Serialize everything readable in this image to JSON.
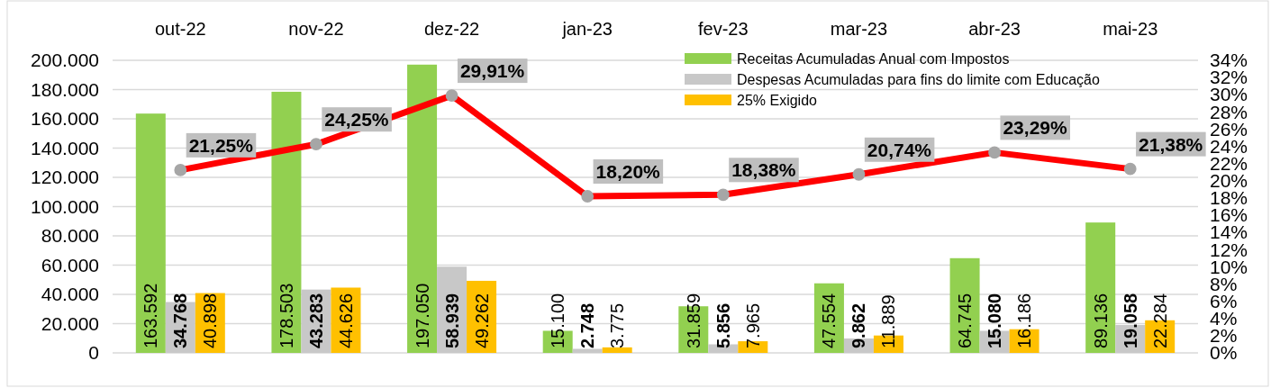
{
  "chart_data": {
    "type": "bar",
    "categories": [
      "out-22",
      "nov-22",
      "dez-22",
      "jan-23",
      "fev-23",
      "mar-23",
      "abr-23",
      "mai-23"
    ],
    "series": [
      {
        "name": "Receitas Acumuladas Anual com Impostos",
        "color": "#92d050",
        "values": [
          163592,
          178503,
          197050,
          15100,
          31859,
          47554,
          64745,
          89136
        ],
        "value_labels": [
          "163.592",
          "178.503",
          "197.050",
          "15.100",
          "31.859",
          "47.554",
          "64.745",
          "89.136"
        ]
      },
      {
        "name": "Despesas Acumuladas para fins do limite com Educação",
        "color": "#c8c8c8",
        "values": [
          34768,
          43283,
          58939,
          2748,
          5856,
          9862,
          15080,
          19058
        ],
        "value_labels": [
          "34.768",
          "43.283",
          "58.939",
          "2.748",
          "5.856",
          "9.862",
          "15.080",
          "19.058"
        ]
      },
      {
        "name": "25% Exigido",
        "color": "#ffc000",
        "values": [
          40898,
          44626,
          49262,
          3775,
          7965,
          11889,
          16186,
          22284
        ],
        "value_labels": [
          "40.898",
          "44.626",
          "49.262",
          "3.775",
          "7.965",
          "11.889",
          "16.186",
          "22.284"
        ]
      },
      {
        "type": "line",
        "axis": "y2",
        "color": "#ff0000",
        "values": [
          21.25,
          24.25,
          29.91,
          18.2,
          18.38,
          20.74,
          23.29,
          21.38
        ],
        "value_labels": [
          "21,25%",
          "24,25%",
          "29,91%",
          "18,20%",
          "18,38%",
          "20,74%",
          "23,29%",
          "21,38%"
        ]
      }
    ],
    "ylim": [
      0,
      200000
    ],
    "yticks": [
      {
        "value": 0,
        "label": "0"
      },
      {
        "value": 20000,
        "label": "20.000"
      },
      {
        "value": 40000,
        "label": "40.000"
      },
      {
        "value": 60000,
        "label": "60.000"
      },
      {
        "value": 80000,
        "label": "80.000"
      },
      {
        "value": 100000,
        "label": "100.000"
      },
      {
        "value": 120000,
        "label": "120.000"
      },
      {
        "value": 140000,
        "label": "140.000"
      },
      {
        "value": 160000,
        "label": "160.000"
      },
      {
        "value": 180000,
        "label": "180.000"
      },
      {
        "value": 200000,
        "label": "200.000"
      }
    ],
    "y2lim": [
      0,
      34
    ],
    "y2ticks": [
      {
        "value": 0,
        "label": "0%"
      },
      {
        "value": 2,
        "label": "2%"
      },
      {
        "value": 4,
        "label": "4%"
      },
      {
        "value": 6,
        "label": "6%"
      },
      {
        "value": 8,
        "label": "8%"
      },
      {
        "value": 10,
        "label": "10%"
      },
      {
        "value": 12,
        "label": "12%"
      },
      {
        "value": 14,
        "label": "14%"
      },
      {
        "value": 16,
        "label": "16%"
      },
      {
        "value": 18,
        "label": "18%"
      },
      {
        "value": 20,
        "label": "20%"
      },
      {
        "value": 22,
        "label": "22%"
      },
      {
        "value": 24,
        "label": "24%"
      },
      {
        "value": 26,
        "label": "26%"
      },
      {
        "value": 28,
        "label": "28%"
      },
      {
        "value": 30,
        "label": "30%"
      },
      {
        "value": 32,
        "label": "32%"
      },
      {
        "value": 34,
        "label": "34%"
      }
    ],
    "grid": "y",
    "legend": "top right",
    "marker": "circle",
    "line_style": "solid"
  }
}
